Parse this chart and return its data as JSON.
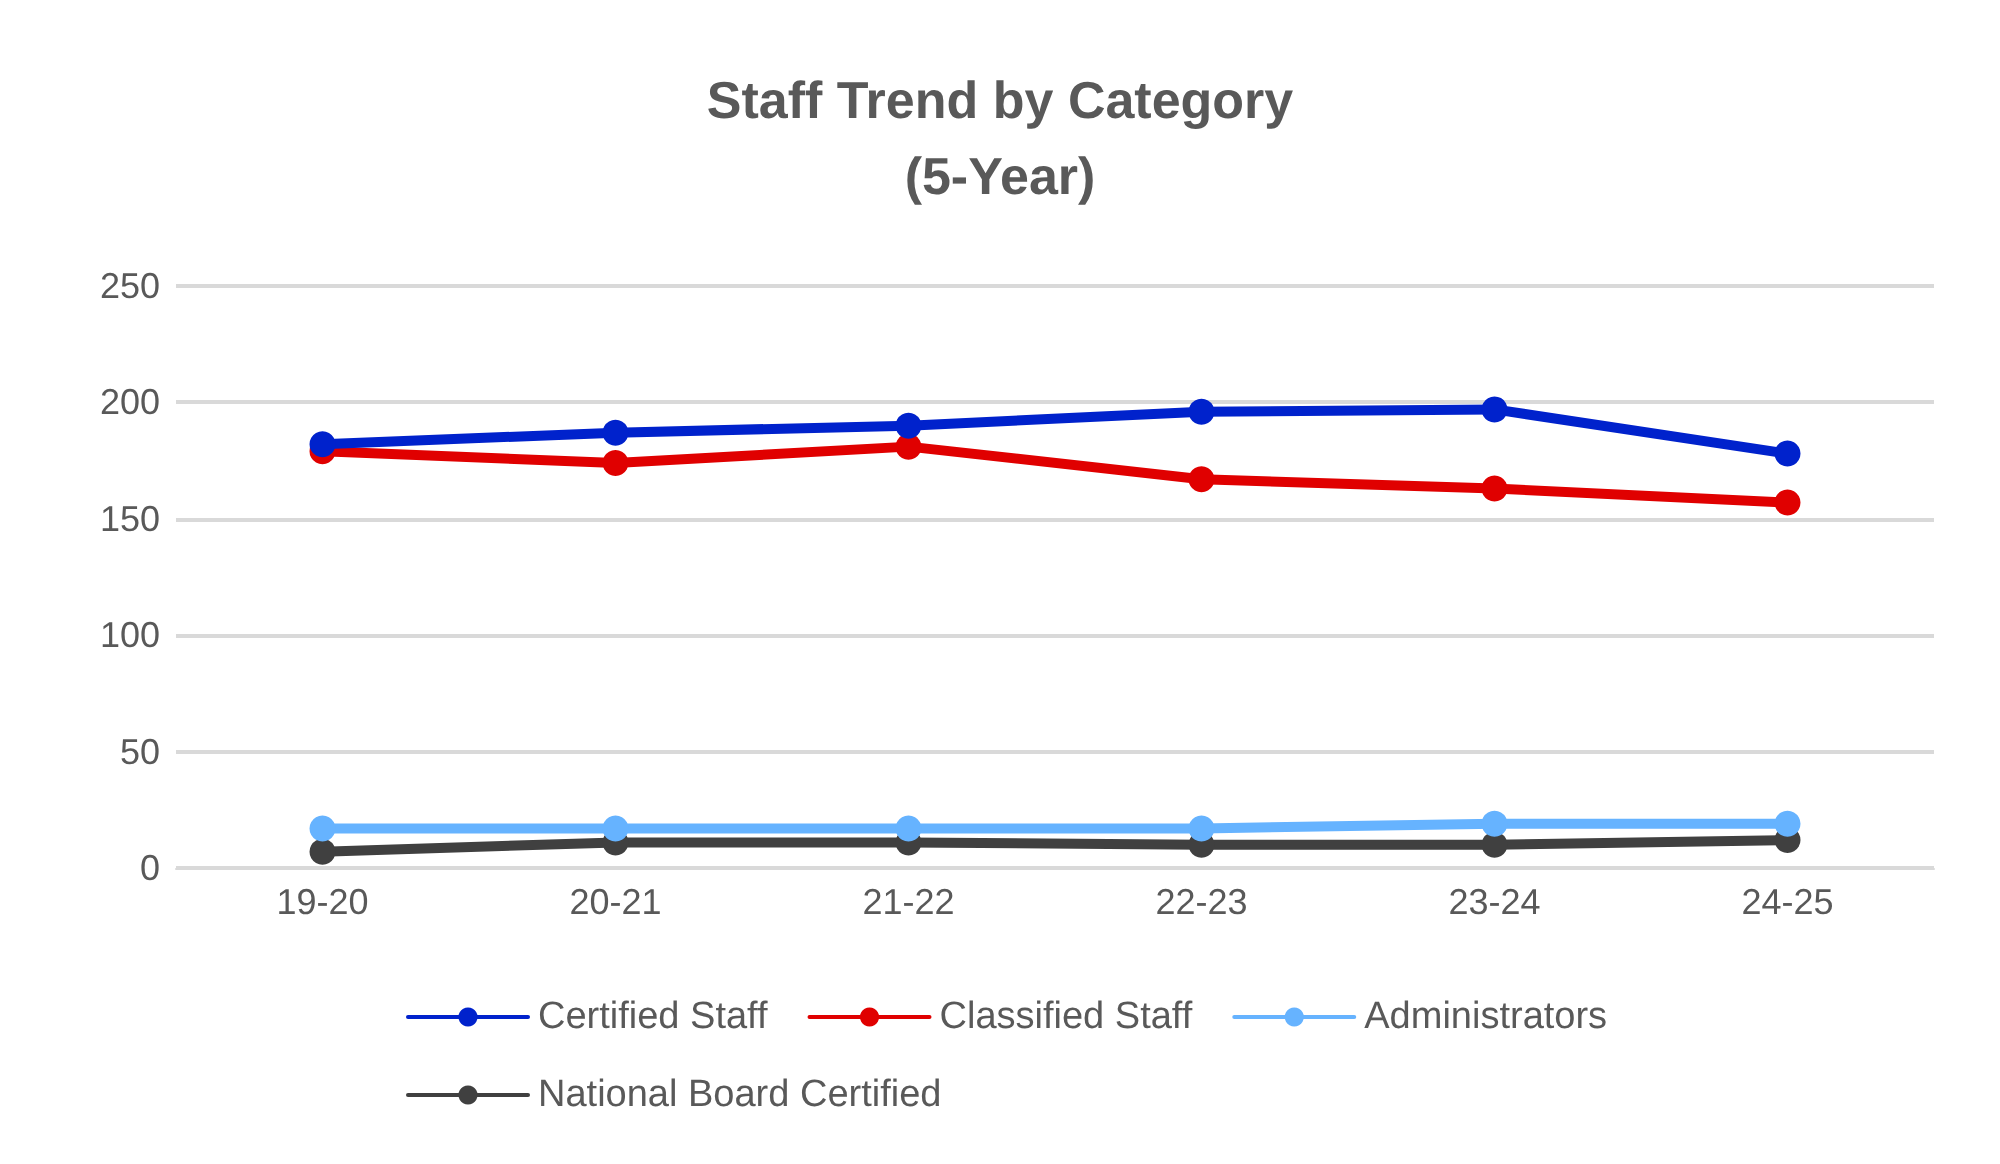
{
  "chart_data": {
    "type": "line",
    "title": "Staff Trend by Category\n(5-Year)",
    "categories": [
      "19-20",
      "20-21",
      "21-22",
      "22-23",
      "23-24",
      "24-25"
    ],
    "series": [
      {
        "name": "Certified Staff",
        "color": "#0022cc",
        "values": [
          182,
          187,
          190,
          196,
          197,
          178
        ]
      },
      {
        "name": "Classified Staff",
        "color": "#e00000",
        "values": [
          179,
          174,
          181,
          167,
          163,
          157
        ]
      },
      {
        "name": "Administrators",
        "color": "#66b3ff",
        "values": [
          17,
          17,
          17,
          17,
          19,
          19
        ]
      },
      {
        "name": "National Board Certified",
        "color": "#404040",
        "values": [
          7,
          11,
          11,
          10,
          10,
          12
        ]
      }
    ],
    "ylim": [
      0,
      250
    ],
    "yticks": [
      0,
      50,
      100,
      150,
      200,
      250
    ],
    "grid": "y",
    "legend": "bottom",
    "marker": "circle",
    "line_style": "solid"
  }
}
